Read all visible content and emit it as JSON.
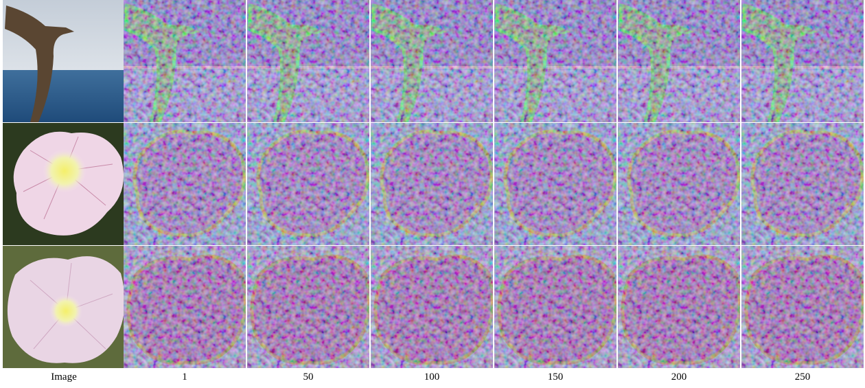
{
  "columns": [
    "Image",
    "1",
    "50",
    "100",
    "150",
    "200",
    "250"
  ]
}
